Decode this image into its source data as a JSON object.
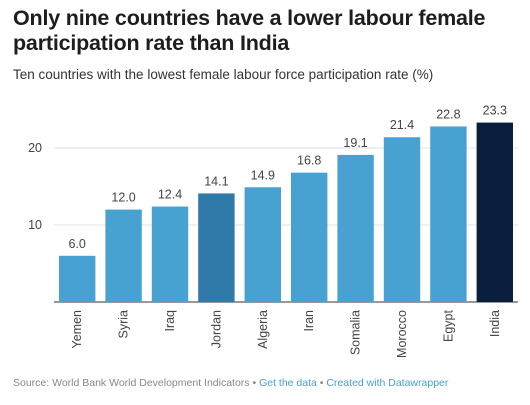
{
  "title": "Only nine countries have a lower labour female participation rate than India",
  "subtitle": "Ten countries with the lowest female labour force participation rate (%)",
  "footer": {
    "source": "Source: World Bank World Development Indicators",
    "separator": " • ",
    "get_data": "Get the data",
    "created_with": "Created with Datawrapper"
  },
  "colors": {
    "default_bar": "#47a2d2",
    "highlight_bar": "#2f7aa8",
    "india_bar": "#0a1f3d",
    "gridline": "#e0e0e0",
    "axis_label": "#444444"
  },
  "chart_data": {
    "type": "bar",
    "categories": [
      "Yemen",
      "Syria",
      "Iraq",
      "Jordan",
      "Algeria",
      "Iran",
      "Somalia",
      "Morocco",
      "Egypt",
      "India"
    ],
    "values": [
      6.0,
      12.0,
      12.4,
      14.1,
      14.9,
      16.8,
      19.1,
      21.4,
      22.8,
      23.3
    ],
    "value_labels": [
      "6.0",
      "12.0",
      "12.4",
      "14.1",
      "14.9",
      "16.8",
      "19.1",
      "21.4",
      "22.8",
      "23.3"
    ],
    "y_ticks": [
      10,
      20
    ],
    "ylim": [
      0,
      25
    ],
    "highlighted": [
      "Jordan",
      "India"
    ],
    "grid": true,
    "legend": "none"
  }
}
